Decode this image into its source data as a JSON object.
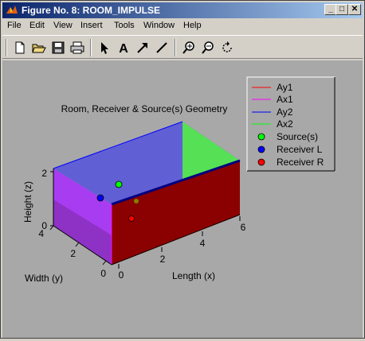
{
  "window": {
    "title": "Figure No. 8: ROOM_IMPULSE",
    "minimize_label": "_",
    "maximize_label": "□",
    "close_label": "✕"
  },
  "menu": [
    "File",
    "Edit",
    "View",
    "Insert",
    "Tools",
    "Window",
    "Help"
  ],
  "toolbar": {
    "tools": [
      "new-file-icon",
      "open-folder-icon",
      "save-icon",
      "print-icon",
      "select-arrow-icon",
      "text-icon",
      "arrow-icon",
      "line-icon",
      "zoom-in-icon",
      "zoom-out-icon",
      "rotate-icon"
    ],
    "text_tool_glyph": "A"
  },
  "plot": {
    "title": "Room, Receiver & Source(s) Geometry",
    "xlabel": "Length (x)",
    "ylabel": "Width (y)",
    "zlabel": "Height (z)",
    "x_ticks": [
      "0",
      "2",
      "4",
      "6"
    ],
    "y_ticks": [
      "0",
      "2",
      "4"
    ],
    "z_ticks": [
      "0",
      "2"
    ]
  },
  "legend": {
    "entries": [
      {
        "label": "Ay1",
        "kind": "line",
        "color": "#ff0000"
      },
      {
        "label": "Ax1",
        "kind": "line",
        "color": "#ff00ff"
      },
      {
        "label": "Ay2",
        "kind": "line",
        "color": "#0000ff"
      },
      {
        "label": "Ax2",
        "kind": "line",
        "color": "#00ff00"
      },
      {
        "label": "Source(s)",
        "kind": "marker",
        "color": "#00ff00"
      },
      {
        "label": "Receiver L",
        "kind": "marker",
        "color": "#0000ff"
      },
      {
        "label": "Receiver R",
        "kind": "marker",
        "color": "#ff0000"
      }
    ]
  },
  "colors": {
    "titlebar_start": "#0a246a",
    "titlebar_end": "#a6caf0",
    "plot_background": "#a8a8a8",
    "face_top": "#5c5cd6",
    "face_front": "#8b0000",
    "face_left": "#a83cf0",
    "face_right_top": "#55e055",
    "face_right_bottom": "#b06a2a"
  }
}
